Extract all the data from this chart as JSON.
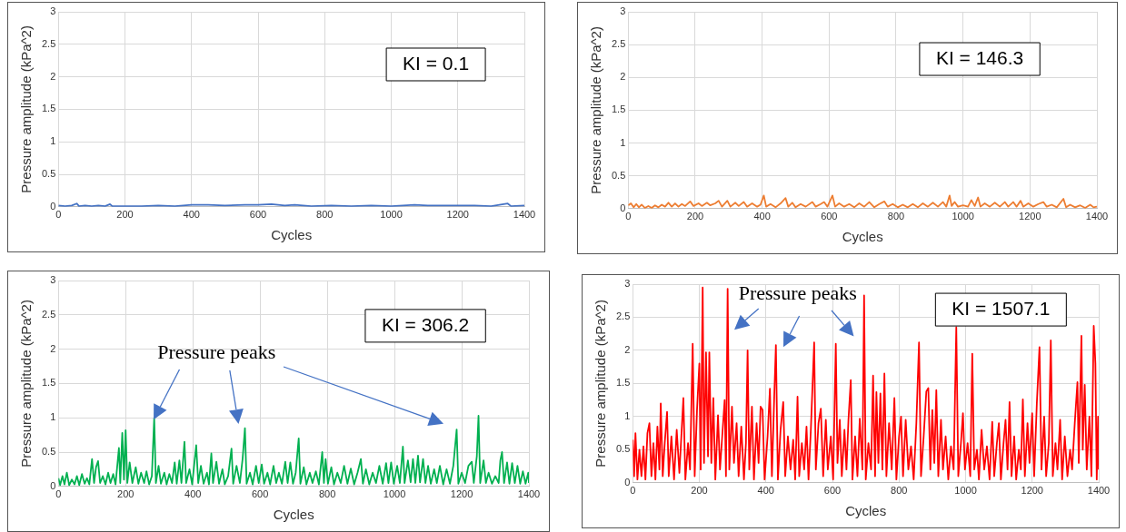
{
  "chart_data": [
    {
      "type": "line",
      "xlabel": "Cycles",
      "ylabel": "Pressure amplitude (kPa^2)",
      "xlim": [
        0,
        1400
      ],
      "xticks": [
        0,
        200,
        400,
        600,
        800,
        1000,
        1200,
        1400
      ],
      "ylim": [
        0,
        3
      ],
      "yticks": [
        0,
        0.5,
        1,
        1.5,
        2,
        2.5,
        3
      ],
      "grid": true,
      "legend": false,
      "marker": "none",
      "line_style": "solid",
      "annotations": [
        "KI = 0.1"
      ],
      "series": [
        {
          "color": "#4472c4",
          "x": [
            0,
            20,
            40,
            55,
            62,
            80,
            100,
            120,
            140,
            155,
            162,
            200,
            250,
            300,
            350,
            400,
            450,
            500,
            560,
            600,
            640,
            680,
            710,
            760,
            820,
            880,
            940,
            1000,
            1070,
            1110,
            1150,
            1200,
            1250,
            1300,
            1350,
            1360,
            1400
          ],
          "values": [
            0.02,
            0.01,
            0.02,
            0.05,
            0.01,
            0.02,
            0.01,
            0.02,
            0.01,
            0.04,
            0.01,
            0.01,
            0.01,
            0.02,
            0.01,
            0.03,
            0.03,
            0.02,
            0.03,
            0.03,
            0.04,
            0.02,
            0.03,
            0.01,
            0.02,
            0.01,
            0.02,
            0.01,
            0.03,
            0.02,
            0.02,
            0.02,
            0.02,
            0.01,
            0.05,
            0.01,
            0.02
          ]
        }
      ]
    },
    {
      "type": "line",
      "xlabel": "Cycles",
      "ylabel": "Pressure amplitude (kPa^2)",
      "xlim": [
        0,
        1400
      ],
      "xticks": [
        0,
        200,
        400,
        600,
        800,
        1000,
        1200,
        1400
      ],
      "ylim": [
        0,
        3
      ],
      "yticks": [
        0,
        0.5,
        1,
        1.5,
        2,
        2.5,
        3
      ],
      "grid": true,
      "legend": false,
      "marker": "none",
      "line_style": "solid",
      "annotations": [
        "KI = 146.3"
      ],
      "series": [
        {
          "color": "#ed7d31",
          "x": [
            0,
            8,
            16,
            24,
            32,
            40,
            50,
            60,
            70,
            80,
            90,
            100,
            110,
            120,
            130,
            140,
            150,
            160,
            170,
            185,
            195,
            210,
            220,
            235,
            245,
            260,
            270,
            280,
            296,
            305,
            320,
            330,
            345,
            355,
            370,
            385,
            395,
            405,
            412,
            425,
            440,
            455,
            470,
            478,
            490,
            500,
            515,
            530,
            550,
            560,
            575,
            585,
            595,
            610,
            618,
            630,
            645,
            660,
            675,
            690,
            705,
            720,
            735,
            750,
            765,
            775,
            790,
            805,
            820,
            835,
            850,
            865,
            880,
            895,
            910,
            925,
            940,
            950,
            960,
            966,
            975,
            985,
            1000,
            1015,
            1025,
            1035,
            1045,
            1052,
            1065,
            1080,
            1095,
            1110,
            1125,
            1135,
            1150,
            1160,
            1172,
            1180,
            1195,
            1210,
            1225,
            1240,
            1250,
            1265,
            1280,
            1300,
            1308,
            1320,
            1335,
            1350,
            1365,
            1380,
            1390,
            1400
          ],
          "values": [
            0.05,
            0.08,
            0.02,
            0.07,
            0.02,
            0.06,
            0.01,
            0.04,
            0.01,
            0.05,
            0.02,
            0.06,
            0.03,
            0.09,
            0.03,
            0.08,
            0.03,
            0.07,
            0.04,
            0.11,
            0.04,
            0.08,
            0.04,
            0.09,
            0.05,
            0.08,
            0.12,
            0.03,
            0.12,
            0.03,
            0.09,
            0.04,
            0.1,
            0.03,
            0.08,
            0.03,
            0.06,
            0.2,
            0.03,
            0.07,
            0.02,
            0.08,
            0.16,
            0.03,
            0.09,
            0.02,
            0.07,
            0.03,
            0.1,
            0.03,
            0.07,
            0.1,
            0.03,
            0.2,
            0.03,
            0.08,
            0.03,
            0.07,
            0.02,
            0.08,
            0.03,
            0.1,
            0.02,
            0.07,
            0.11,
            0.03,
            0.07,
            0.02,
            0.06,
            0.02,
            0.07,
            0.02,
            0.08,
            0.03,
            0.09,
            0.03,
            0.1,
            0.03,
            0.2,
            0.04,
            0.1,
            0.03,
            0.05,
            0.03,
            0.13,
            0.04,
            0.17,
            0.03,
            0.08,
            0.03,
            0.09,
            0.03,
            0.1,
            0.03,
            0.1,
            0.03,
            0.12,
            0.03,
            0.08,
            0.03,
            0.07,
            0.1,
            0.03,
            0.06,
            0.02,
            0.15,
            0.02,
            0.06,
            0.02,
            0.05,
            0.01,
            0.06,
            0.02,
            0.03
          ]
        }
      ]
    },
    {
      "type": "line",
      "xlabel": "Cycles",
      "ylabel": "Pressure amplitude (kPa^2)",
      "xlim": [
        0,
        1400
      ],
      "xticks": [
        0,
        200,
        400,
        600,
        800,
        1000,
        1200,
        1400
      ],
      "ylim": [
        0,
        3
      ],
      "yticks": [
        0,
        0.5,
        1,
        1.5,
        2,
        2.5,
        3
      ],
      "grid": true,
      "legend": false,
      "marker": "none",
      "line_style": "solid",
      "annotations": [
        "KI = 306.2",
        "Pressure peaks"
      ],
      "series": [
        {
          "color": "#00b050",
          "x": [
            0,
            5,
            12,
            18,
            25,
            32,
            40,
            48,
            55,
            62,
            70,
            78,
            85,
            92,
            100,
            106,
            112,
            118,
            124,
            132,
            140,
            148,
            155,
            163,
            170,
            180,
            184,
            190,
            195,
            200,
            205,
            212,
            220,
            230,
            238,
            246,
            255,
            262,
            270,
            278,
            285,
            290,
            298,
            305,
            315,
            322,
            330,
            338,
            346,
            352,
            360,
            366,
            375,
            380,
            390,
            398,
            410,
            416,
            424,
            432,
            442,
            448,
            455,
            460,
            470,
            478,
            488,
            495,
            505,
            515,
            520,
            530,
            540,
            548,
            555,
            560,
            570,
            578,
            588,
            596,
            605,
            612,
            622,
            630,
            640,
            648,
            656,
            665,
            675,
            682,
            690,
            698,
            706,
            715,
            720,
            730,
            738,
            748,
            756,
            766,
            775,
            785,
            790,
            795,
            802,
            812,
            820,
            830,
            840,
            850,
            860,
            870,
            880,
            890,
            900,
            906,
            915,
            925,
            935,
            945,
            955,
            965,
            975,
            982,
            990,
            998,
            1008,
            1016,
            1025,
            1030,
            1040,
            1048,
            1055,
            1062,
            1070,
            1076,
            1085,
            1092,
            1100,
            1108,
            1118,
            1126,
            1135,
            1145,
            1155,
            1165,
            1175,
            1185,
            1190,
            1200,
            1210,
            1220,
            1230,
            1236,
            1245,
            1250,
            1255,
            1265,
            1272,
            1280,
            1290,
            1300,
            1310,
            1315,
            1320,
            1326,
            1335,
            1342,
            1350,
            1358,
            1366,
            1374,
            1382,
            1390,
            1398,
            1400
          ],
          "values": [
            0.12,
            0.02,
            0.15,
            0.03,
            0.2,
            0.02,
            0.1,
            0.03,
            0.15,
            0.02,
            0.18,
            0.04,
            0.12,
            0.03,
            0.4,
            0.05,
            0.28,
            0.37,
            0.05,
            0.15,
            0.03,
            0.2,
            0.05,
            0.18,
            0.03,
            0.56,
            0.05,
            0.78,
            0.1,
            0.82,
            0.05,
            0.35,
            0.05,
            0.28,
            0.04,
            0.2,
            0.05,
            0.22,
            0.03,
            0.15,
            1.0,
            0.05,
            0.3,
            0.04,
            0.2,
            0.03,
            0.18,
            0.05,
            0.35,
            0.04,
            0.38,
            0.05,
            0.65,
            0.05,
            0.25,
            0.03,
            0.6,
            0.05,
            0.3,
            0.04,
            0.2,
            0.03,
            0.48,
            0.05,
            0.36,
            0.04,
            0.25,
            0.03,
            0.15,
            0.55,
            0.04,
            0.3,
            0.05,
            0.4,
            0.85,
            0.04,
            0.2,
            0.03,
            0.3,
            0.05,
            0.32,
            0.04,
            0.2,
            0.03,
            0.3,
            0.05,
            0.2,
            0.04,
            0.36,
            0.05,
            0.35,
            0.04,
            0.2,
            0.7,
            0.04,
            0.28,
            0.03,
            0.2,
            0.05,
            0.22,
            0.03,
            0.5,
            0.05,
            0.4,
            0.04,
            0.28,
            0.03,
            0.2,
            0.05,
            0.3,
            0.04,
            0.26,
            0.03,
            0.2,
            0.4,
            0.04,
            0.25,
            0.03,
            0.2,
            0.05,
            0.3,
            0.04,
            0.34,
            0.05,
            0.35,
            0.04,
            0.3,
            0.05,
            0.58,
            0.05,
            0.38,
            0.06,
            0.4,
            0.05,
            0.45,
            0.06,
            0.4,
            0.05,
            0.3,
            0.04,
            0.25,
            0.05,
            0.3,
            0.03,
            0.25,
            0.04,
            0.3,
            0.83,
            0.04,
            0.2,
            0.05,
            0.3,
            0.36,
            0.05,
            0.44,
            1.03,
            0.05,
            0.38,
            0.05,
            0.2,
            0.04,
            0.15,
            0.05,
            0.38,
            0.5,
            0.05,
            0.35,
            0.04,
            0.34,
            0.05,
            0.3,
            0.04,
            0.22,
            0.04,
            0.2,
            0.05
          ]
        }
      ]
    },
    {
      "type": "line",
      "xlabel": "Cycles",
      "ylabel": "Pressure amplitude (kPa^2)",
      "xlim": [
        0,
        1400
      ],
      "xticks": [
        0,
        200,
        400,
        600,
        800,
        1000,
        1200,
        1400
      ],
      "ylim": [
        0,
        3
      ],
      "yticks": [
        0,
        0.5,
        1,
        1.5,
        2,
        2.5,
        3
      ],
      "grid": true,
      "legend": false,
      "marker": "none",
      "line_style": "solid",
      "annotations": [
        "KI = 1507.1",
        "Pressure peaks"
      ],
      "series": [
        {
          "color": "#ff0000",
          "x": [
            0,
            4,
            8,
            14,
            20,
            26,
            32,
            38,
            44,
            50,
            56,
            62,
            68,
            74,
            80,
            84,
            90,
            96,
            103,
            108,
            116,
            124,
            132,
            140,
            148,
            152,
            158,
            166,
            172,
            180,
            186,
            193,
            200,
            204,
            210,
            214,
            220,
            226,
            230,
            236,
            242,
            248,
            256,
            262,
            270,
            276,
            280,
            285,
            290,
            298,
            304,
            312,
            318,
            326,
            334,
            340,
            345,
            350,
            358,
            364,
            372,
            378,
            384,
            390,
            396,
            405,
            412,
            418,
            425,
            430,
            436,
            444,
            452,
            458,
            466,
            474,
            482,
            488,
            495,
            500,
            508,
            515,
            522,
            528,
            535,
            545,
            550,
            558,
            565,
            572,
            580,
            586,
            595,
            602,
            610,
            615,
            622,
            628,
            636,
            642,
            648,
            655,
            660,
            668,
            675,
            682,
            690,
            695,
            700,
            708,
            716,
            722,
            728,
            732,
            738,
            744,
            750,
            756,
            762,
            770,
            778,
            786,
            792,
            800,
            806,
            812,
            820,
            828,
            836,
            844,
            852,
            860,
            866,
            874,
            882,
            888,
            894,
            900,
            906,
            912,
            918,
            926,
            932,
            940,
            948,
            956,
            964,
            972,
            978,
            986,
            992,
            998,
            1006,
            1014,
            1020,
            1026,
            1034,
            1040,
            1048,
            1056,
            1064,
            1072,
            1080,
            1086,
            1094,
            1100,
            1106,
            1114,
            1120,
            1126,
            1132,
            1138,
            1146,
            1152,
            1160,
            1166,
            1172,
            1178,
            1186,
            1192,
            1200,
            1206,
            1214,
            1222,
            1228,
            1236,
            1242,
            1250,
            1256,
            1262,
            1270,
            1276,
            1284,
            1290,
            1298,
            1306,
            1314,
            1320,
            1328,
            1336,
            1340,
            1348,
            1352,
            1358,
            1364,
            1372,
            1378,
            1385,
            1390,
            1394,
            1398,
            1400
          ],
          "values": [
            0.65,
            0.1,
            0.75,
            0.05,
            0.5,
            0.1,
            0.55,
            0.05,
            0.75,
            0.9,
            0.1,
            0.6,
            0.05,
            0.85,
            0.2,
            1.2,
            0.1,
            0.6,
            1.07,
            0.1,
            0.7,
            0.05,
            0.8,
            0.15,
            0.9,
            1.28,
            0.05,
            0.6,
            0.2,
            2.1,
            0.1,
            1.1,
            1.8,
            0.2,
            2.95,
            0.3,
            1.97,
            0.4,
            1.97,
            0.3,
            1.28,
            0.05,
            1.02,
            0.2,
            0.8,
            1.25,
            0.1,
            2.93,
            0.2,
            1.15,
            0.3,
            0.9,
            0.1,
            0.85,
            0.05,
            0.6,
            2.0,
            0.2,
            1.15,
            0.05,
            0.9,
            0.3,
            1.15,
            1.1,
            0.05,
            0.7,
            1.42,
            0.1,
            1.3,
            2.08,
            0.05,
            0.8,
            1.22,
            0.1,
            0.7,
            0.2,
            0.65,
            0.05,
            1.3,
            0.1,
            0.6,
            0.2,
            0.85,
            0.05,
            0.8,
            2.12,
            0.2,
            0.9,
            1.12,
            0.1,
            0.95,
            0.2,
            0.7,
            0.05,
            2.1,
            0.3,
            0.95,
            0.1,
            0.8,
            0.2,
            0.95,
            1.55,
            0.05,
            0.7,
            0.1,
            0.97,
            0.2,
            2.83,
            0.05,
            0.6,
            0.2,
            1.62,
            0.1,
            1.37,
            0.3,
            1.35,
            0.2,
            1.65,
            0.1,
            0.9,
            0.2,
            1.28,
            0.05,
            0.7,
            1.0,
            0.1,
            0.95,
            0.2,
            0.55,
            0.05,
            0.9,
            2.12,
            0.1,
            0.7,
            1.38,
            1.43,
            0.2,
            1.1,
            0.3,
            1.4,
            0.1,
            0.95,
            0.2,
            0.7,
            0.05,
            0.55,
            0.2,
            2.35,
            0.1,
            0.6,
            1.05,
            0.2,
            0.6,
            0.1,
            1.95,
            0.2,
            0.5,
            0.05,
            0.8,
            0.2,
            0.55,
            0.05,
            0.92,
            0.1,
            0.6,
            0.9,
            0.05,
            0.6,
            0.95,
            0.2,
            1.22,
            0.1,
            0.7,
            0.05,
            0.5,
            0.2,
            1.26,
            0.1,
            0.9,
            0.3,
            1.05,
            0.1,
            1.2,
            2.05,
            0.2,
            1.0,
            0.1,
            0.6,
            2.15,
            0.1,
            0.6,
            0.2,
            0.95,
            0.05,
            0.7,
            0.1,
            0.5,
            0.2,
            0.9,
            1.52,
            0.3,
            2.22,
            0.5,
            1.48,
            0.2,
            1.0,
            0.1,
            2.37,
            1.8,
            0.05,
            1.0,
            0.2
          ]
        }
      ]
    }
  ]
}
